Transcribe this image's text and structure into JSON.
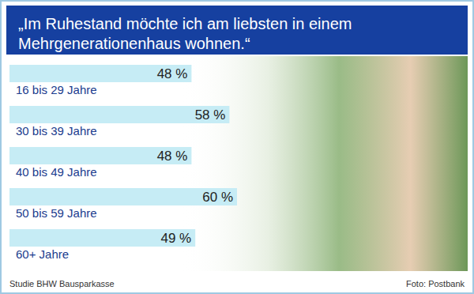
{
  "chart_data": {
    "type": "bar",
    "orientation": "horizontal",
    "title": "„Im Ruhestand möchte ich am liebsten in einem Mehrgenerationenhaus wohnen.“",
    "categories": [
      "16 bis 29 Jahre",
      "30 bis 39 Jahre",
      "40 bis 49 Jahre",
      "50 bis 59 Jahre",
      "60+ Jahre"
    ],
    "values": [
      48,
      58,
      48,
      60,
      49
    ],
    "value_labels": [
      "48 %",
      "58 %",
      "48 %",
      "60 %",
      "49 %"
    ],
    "color": "#c6ecf5",
    "xlim": [
      0,
      100
    ],
    "data_labels": true,
    "tick_labels": false,
    "grid": false,
    "source": "Studie BHW Bausparkasse",
    "photo_credit": "Foto: Postbank"
  }
}
